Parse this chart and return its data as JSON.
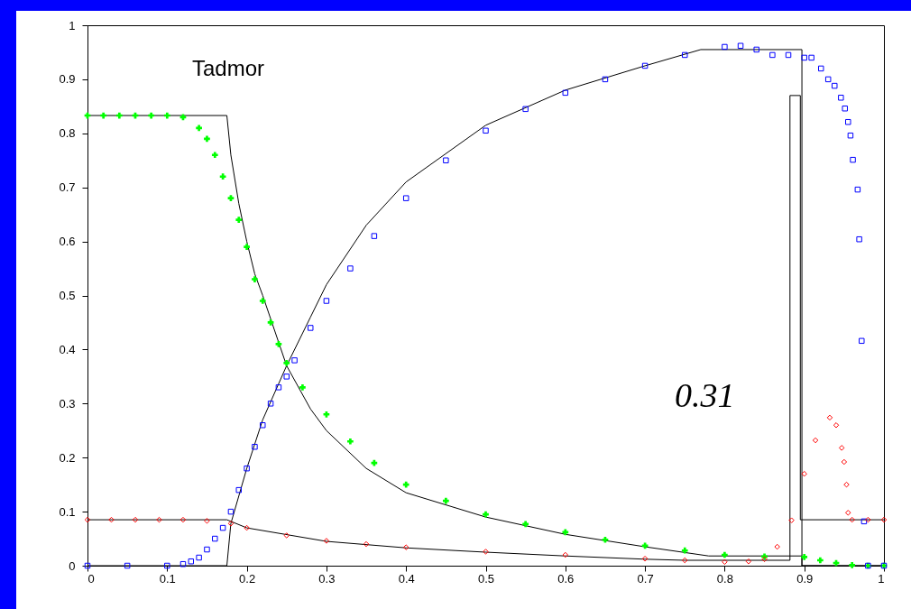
{
  "chart_data": {
    "type": "scatter",
    "xlim": [
      0,
      1
    ],
    "ylim": [
      0,
      1
    ],
    "xticks": [
      0,
      0.1,
      0.2,
      0.3,
      0.4,
      0.5,
      0.6,
      0.7,
      0.8,
      0.9,
      1
    ],
    "yticks": [
      0,
      0.1,
      0.2,
      0.3,
      0.4,
      0.5,
      0.6,
      0.7,
      0.8,
      0.9,
      1
    ],
    "grid": false,
    "annotations": [
      "Tadmor",
      "0.31"
    ],
    "series": [
      {
        "marker": "cross",
        "color": "#00ff00",
        "x": [
          0,
          0.02,
          0.04,
          0.06,
          0.08,
          0.1,
          0.12,
          0.14,
          0.15,
          0.16,
          0.17,
          0.18,
          0.19,
          0.2,
          0.21,
          0.22,
          0.23,
          0.24,
          0.25,
          0.27,
          0.3,
          0.33,
          0.36,
          0.4,
          0.45,
          0.5,
          0.55,
          0.6,
          0.65,
          0.7,
          0.75,
          0.8,
          0.85,
          0.9,
          0.92,
          0.94,
          0.96,
          0.98,
          1
        ],
        "values": [
          0.833,
          0.833,
          0.833,
          0.833,
          0.833,
          0.833,
          0.83,
          0.81,
          0.79,
          0.76,
          0.72,
          0.68,
          0.64,
          0.59,
          0.53,
          0.49,
          0.45,
          0.41,
          0.375,
          0.33,
          0.28,
          0.23,
          0.19,
          0.15,
          0.12,
          0.095,
          0.077,
          0.062,
          0.048,
          0.037,
          0.028,
          0.02,
          0.017,
          0.016,
          0.01,
          0.005,
          0.001,
          0,
          0
        ]
      },
      {
        "marker": "square",
        "color": "#0000ff",
        "x": [
          0,
          0.05,
          0.1,
          0.12,
          0.13,
          0.14,
          0.15,
          0.16,
          0.17,
          0.18,
          0.19,
          0.2,
          0.21,
          0.22,
          0.23,
          0.24,
          0.25,
          0.26,
          0.28,
          0.3,
          0.33,
          0.36,
          0.4,
          0.45,
          0.5,
          0.55,
          0.6,
          0.65,
          0.7,
          0.75,
          0.8,
          0.82,
          0.84,
          0.86,
          0.88,
          0.9,
          0.909,
          0.921,
          0.93,
          0.938,
          0.946,
          0.951,
          0.955,
          0.958,
          0.961,
          0.967,
          0.969,
          0.972,
          0.975,
          0.98,
          1
        ],
        "values": [
          0,
          0,
          0,
          0.003,
          0.008,
          0.015,
          0.03,
          0.05,
          0.07,
          0.1,
          0.14,
          0.18,
          0.22,
          0.26,
          0.3,
          0.33,
          0.35,
          0.38,
          0.44,
          0.49,
          0.55,
          0.61,
          0.68,
          0.75,
          0.805,
          0.845,
          0.875,
          0.9,
          0.925,
          0.945,
          0.96,
          0.962,
          0.955,
          0.945,
          0.945,
          0.94,
          0.94,
          0.92,
          0.9,
          0.888,
          0.866,
          0.846,
          0.821,
          0.796,
          0.751,
          0.696,
          0.604,
          0.416,
          0.082,
          0,
          0
        ]
      },
      {
        "marker": "diamond",
        "color": "#ff0000",
        "x": [
          0,
          0.03,
          0.06,
          0.09,
          0.12,
          0.15,
          0.18,
          0.2,
          0.25,
          0.3,
          0.35,
          0.4,
          0.5,
          0.6,
          0.7,
          0.75,
          0.8,
          0.83,
          0.85,
          0.866,
          0.884,
          0.9,
          0.914,
          0.932,
          0.94,
          0.947,
          0.95,
          0.953,
          0.955,
          0.96,
          0.98,
          1
        ],
        "values": [
          0.085,
          0.085,
          0.085,
          0.085,
          0.085,
          0.083,
          0.078,
          0.07,
          0.056,
          0.046,
          0.04,
          0.034,
          0.026,
          0.02,
          0.013,
          0.01,
          0.007,
          0.008,
          0.012,
          0.035,
          0.084,
          0.17,
          0.232,
          0.274,
          0.26,
          0.218,
          0.192,
          0.15,
          0.098,
          0.085,
          0.085,
          0.085
        ]
      },
      {
        "type": "line",
        "color": "#000000",
        "x": [
          0,
          0.175,
          0.18,
          0.19,
          0.2,
          0.21,
          0.22,
          0.25,
          0.28,
          0.3,
          0.35,
          0.4,
          0.5,
          0.6,
          0.7,
          0.78,
          0.88,
          0.897,
          0.897,
          1
        ],
        "values": [
          0.833,
          0.833,
          0.76,
          0.67,
          0.6,
          0.54,
          0.5,
          0.37,
          0.29,
          0.25,
          0.18,
          0.135,
          0.09,
          0.058,
          0.035,
          0.018,
          0.018,
          0.018,
          0,
          0
        ]
      },
      {
        "type": "line",
        "color": "#000000",
        "x": [
          0,
          0.175,
          0.18,
          0.2,
          0.22,
          0.25,
          0.28,
          0.3,
          0.35,
          0.4,
          0.5,
          0.6,
          0.7,
          0.77,
          0.897,
          0.897,
          1
        ],
        "values": [
          0,
          0,
          0.078,
          0.18,
          0.27,
          0.37,
          0.46,
          0.52,
          0.63,
          0.71,
          0.815,
          0.88,
          0.925,
          0.955,
          0.955,
          0,
          0
        ]
      },
      {
        "type": "line",
        "color": "#000000",
        "x": [
          0,
          0.175,
          0.2,
          0.3,
          0.4,
          0.5,
          0.6,
          0.7,
          0.75,
          0.882,
          0.882,
          0.895,
          0.895,
          1
        ],
        "values": [
          0.085,
          0.085,
          0.07,
          0.045,
          0.033,
          0.025,
          0.018,
          0.012,
          0.01,
          0.01,
          0.87,
          0.87,
          0.085,
          0.085
        ]
      }
    ]
  }
}
